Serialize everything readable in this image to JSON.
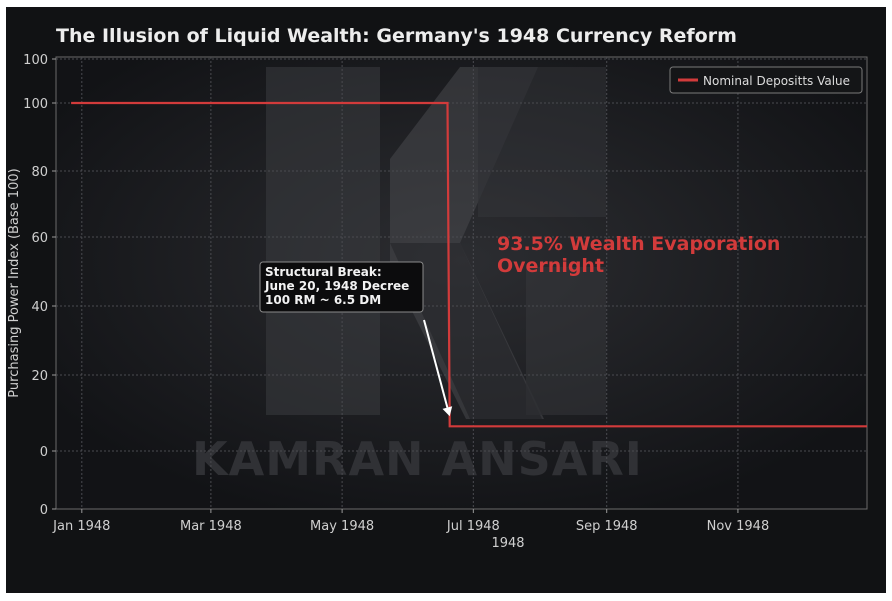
{
  "chart_data": {
    "type": "line",
    "title": "The Illusion of Liquid Wealth: Germany's 1948 Currency Reform",
    "ylabel": "Purchasing Power Index (Base 100)",
    "xlabel": "1948",
    "y_ticks": [
      "0",
      "0",
      "20",
      "40",
      "60",
      "80",
      "100",
      "100"
    ],
    "x_ticks": [
      "Jan 1948",
      "Mar 1948",
      "May 1948",
      "Jul 1948",
      "Sep 1948",
      "Nov 1948"
    ],
    "series": [
      {
        "name": "Nominal Depositts Value",
        "color": "#d23b3b",
        "x": [
          "1947-12-27",
          "1948-06-19",
          "1948-06-20",
          "1948-12-31"
        ],
        "y": [
          100,
          100,
          6.5,
          6.5
        ]
      }
    ],
    "legend_position": "top-right",
    "grid": true,
    "annotations": {
      "callout": {
        "lines": [
          "Structural Break:",
          "June 20, 1948 Decree",
          "100 RM ~ 6.5 DM"
        ],
        "target_date": "1948-06-20",
        "target_value": 6.5
      },
      "highlight": {
        "lines": [
          "93.5% Wealth Evaporation",
          "Overnight"
        ],
        "color": "#d23b3b"
      }
    },
    "watermark": "KAMRAN ANSARI"
  }
}
